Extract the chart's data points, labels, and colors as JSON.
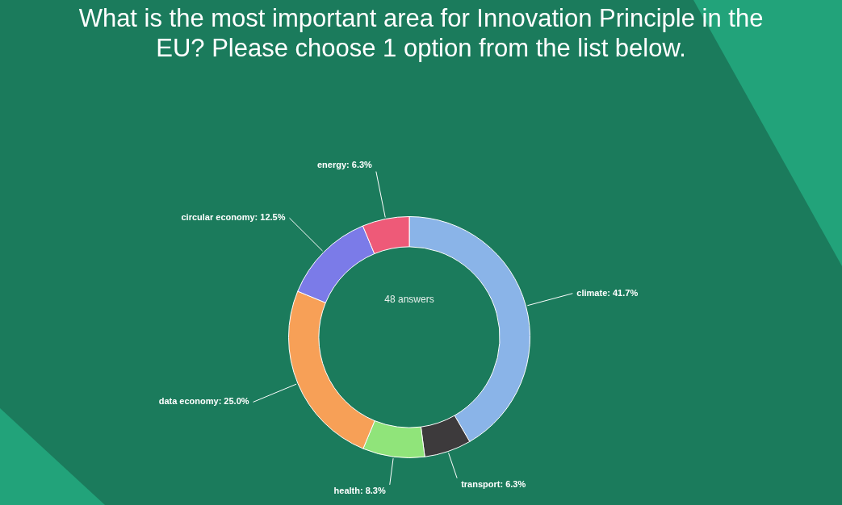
{
  "chart_data": {
    "type": "donut",
    "title": "What is the most important area for Innovation Principle in the EU? Please choose 1 option from the list below.",
    "categories": [
      "climate",
      "transport",
      "health",
      "data economy",
      "circular economy",
      "energy"
    ],
    "values": [
      41.7,
      6.3,
      8.3,
      25.0,
      12.5,
      6.3
    ],
    "value_labels": [
      "41.7%",
      "6.3%",
      "8.3%",
      "25.0%",
      "12.5%",
      "6.3%"
    ],
    "colors": [
      "#8ab4e8",
      "#3d3a3c",
      "#90e47a",
      "#f7a057",
      "#7b7be8",
      "#ee5a78"
    ],
    "annotations": [
      "48 answers"
    ],
    "legend": false
  }
}
